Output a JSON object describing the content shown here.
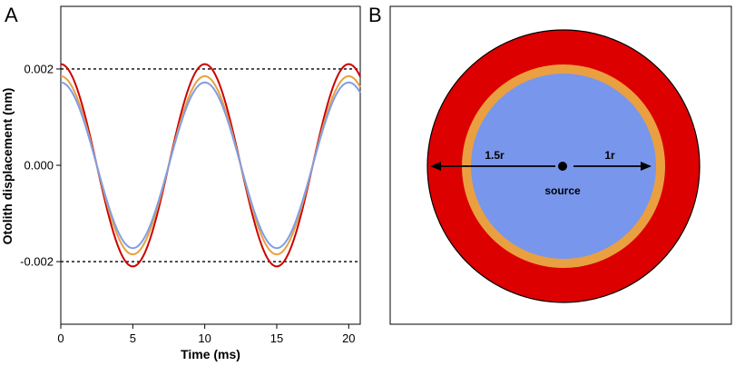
{
  "panels": {
    "a_letter": "A",
    "b_letter": "B"
  },
  "chart_data": {
    "type": "line",
    "xlabel": "Time (ms)",
    "ylabel": "Otolith displacement (nm)",
    "xlim": [
      0,
      20.8
    ],
    "ylim": [
      -0.0033,
      0.0033
    ],
    "x_ticks": [
      0,
      5,
      10,
      15,
      20
    ],
    "x_tick_labels": [
      "0",
      "5",
      "10",
      "15",
      "20"
    ],
    "y_ticks": [
      0.002,
      0.0,
      -0.002
    ],
    "y_tick_labels": [
      "0.002",
      "0.000",
      "-0.002"
    ],
    "reference_lines": [
      0.002,
      -0.002
    ],
    "period_ms": 10,
    "grid": false,
    "series": [
      {
        "amplitude": 0.0021,
        "color": "#cc0000"
      },
      {
        "amplitude": 0.00185,
        "color": "#e8a040"
      },
      {
        "amplitude": 0.00172,
        "color": "#7f9ee6"
      }
    ]
  },
  "diagram": {
    "label_outer": "1.5r",
    "label_inner": "1r",
    "label_source": "source",
    "colors": {
      "outer": "#dd0000",
      "ring": "#eaa040",
      "inner": "#7896eb"
    }
  }
}
